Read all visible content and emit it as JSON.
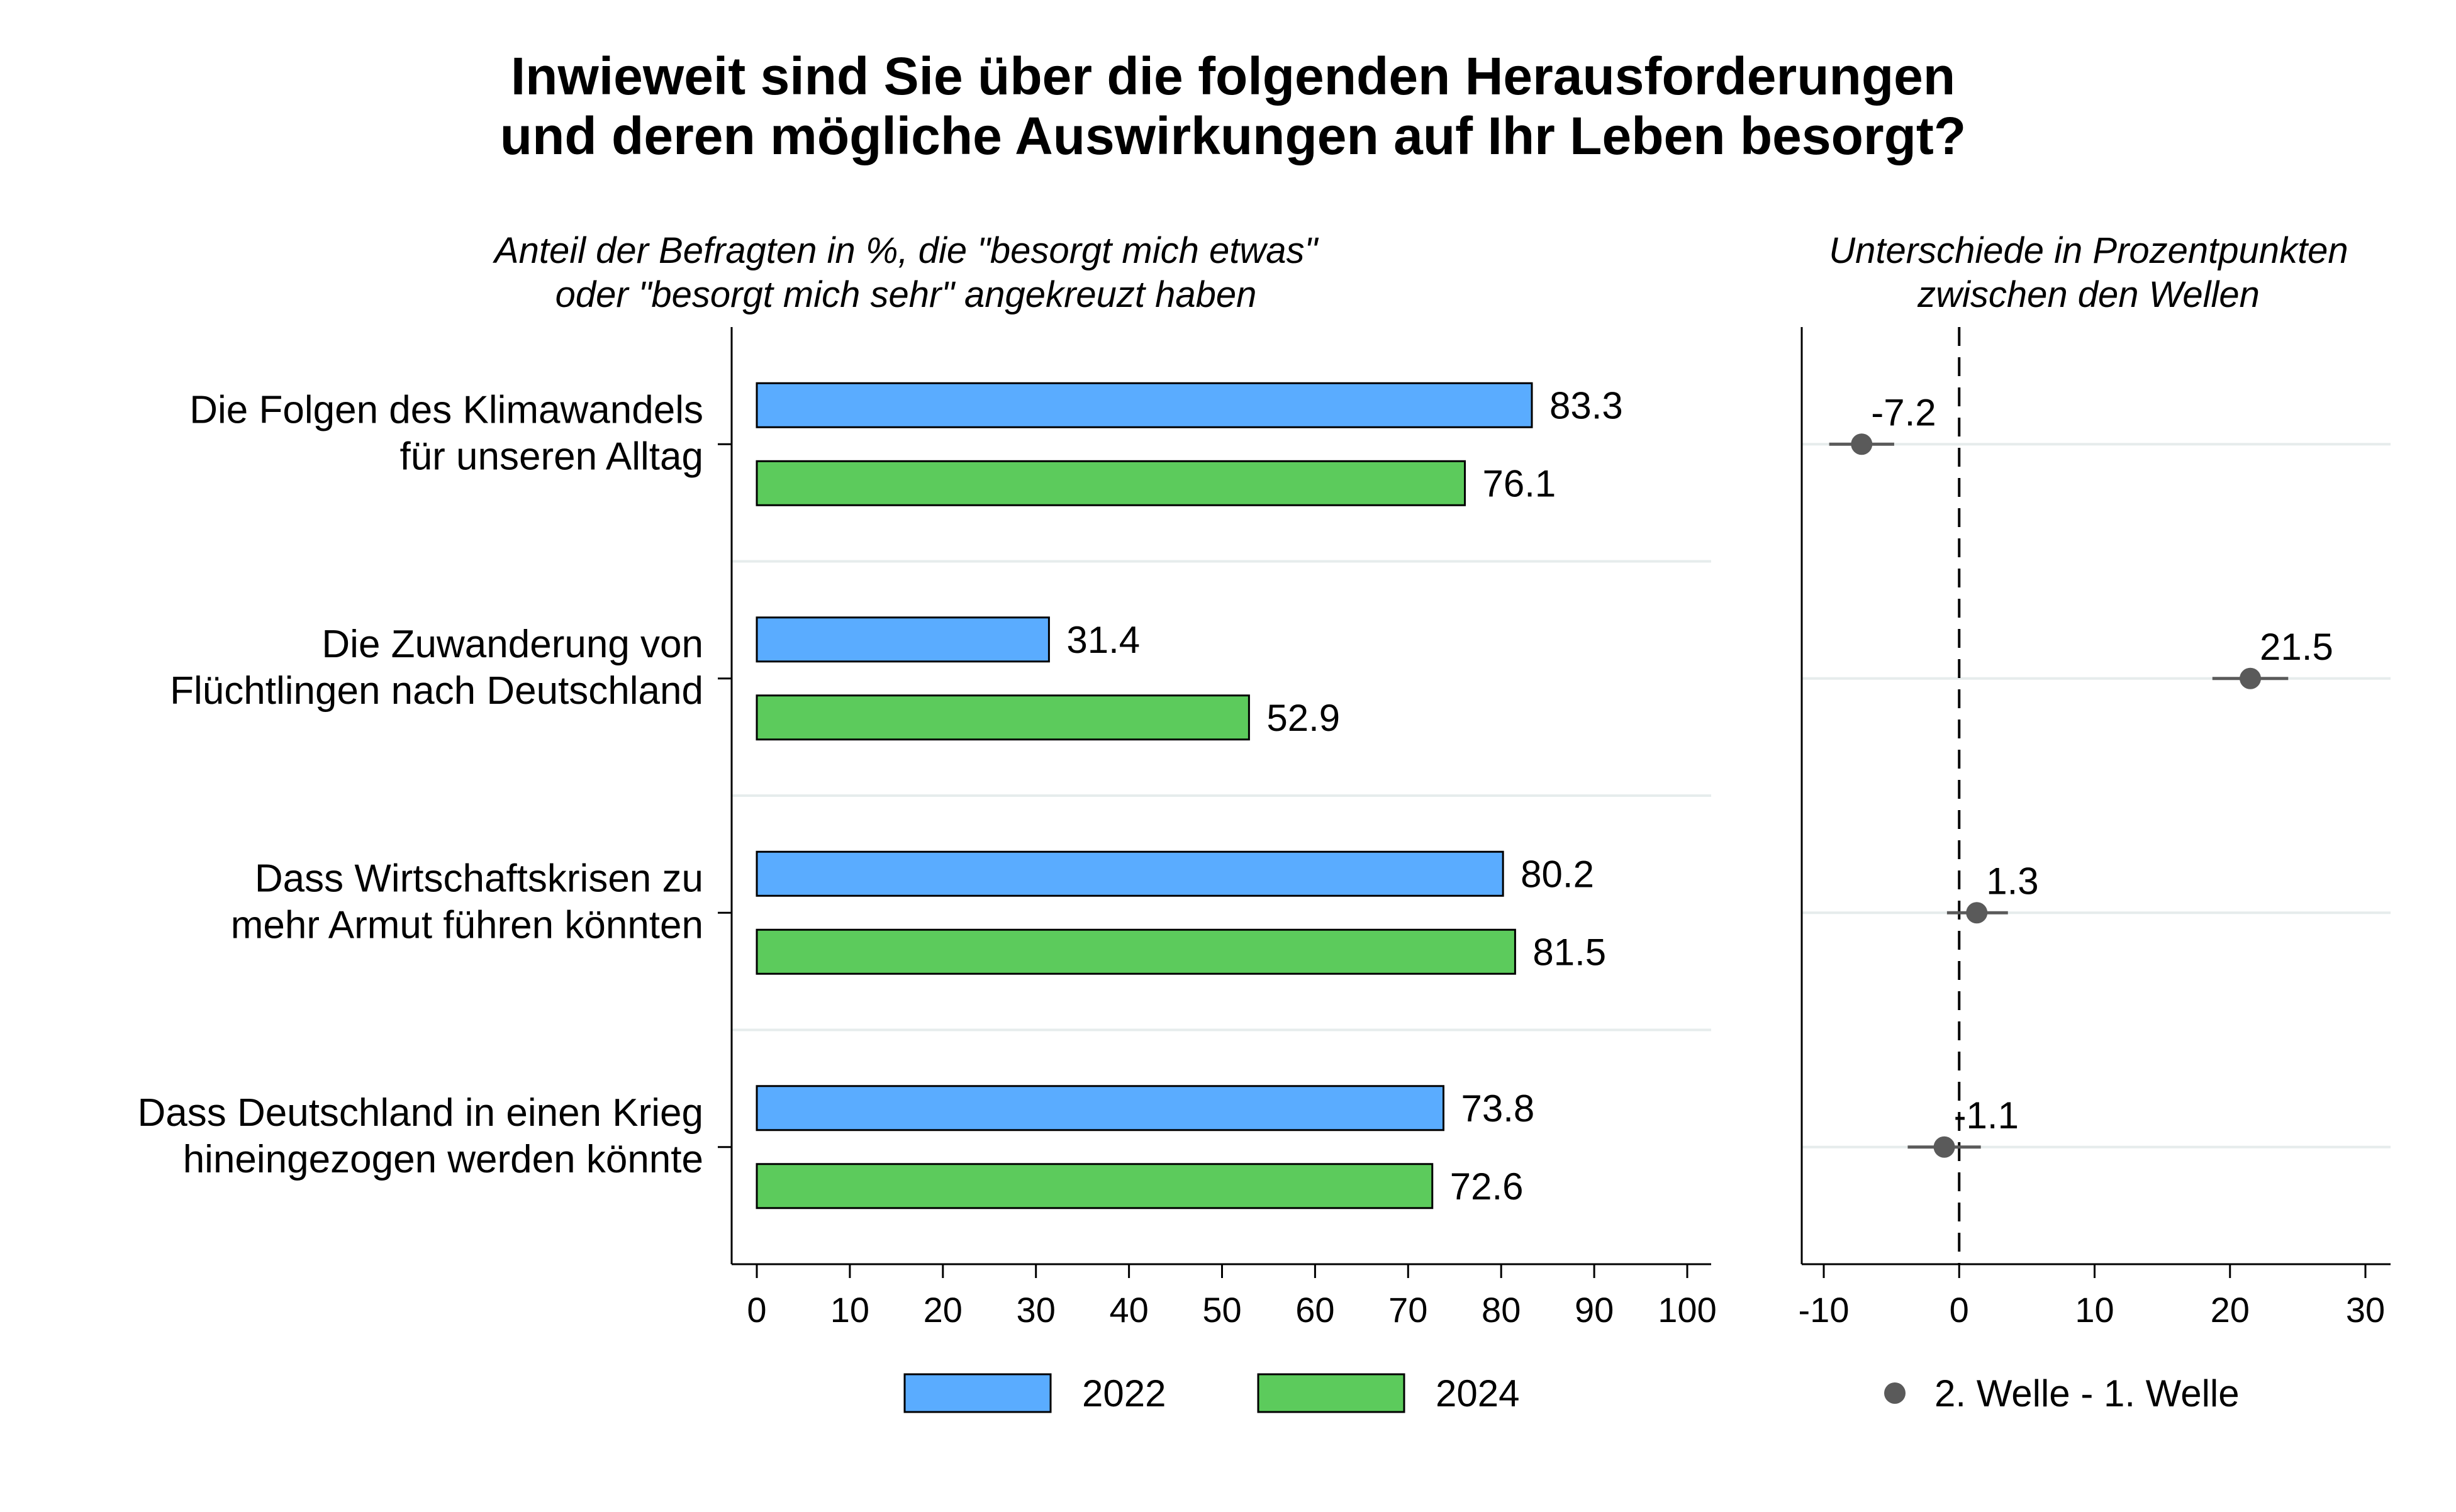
{
  "title": [
    "Inwieweit sind Sie über die folgenden Herausforderungen",
    "und deren mögliche Auswirkungen auf Ihr Leben besorgt?"
  ],
  "colors": {
    "series_2022": "#5aacff",
    "series_2024": "#5ccb5c",
    "point": "#5a5a5a",
    "grid": "#e6ecec"
  },
  "chart_data": [
    {
      "type": "bar",
      "orientation": "horizontal",
      "subtitle": [
        "Anteil der Befragten in %, die \"besorgt mich etwas\"",
        "oder \"besorgt mich sehr\" angekreuzt haben"
      ],
      "categories": [
        [
          "Die Folgen des Klimawandels",
          "für unseren Alltag"
        ],
        [
          "Die Zuwanderung von",
          "Flüchtlingen nach Deutschland"
        ],
        [
          "Dass Wirtschaftskrisen zu",
          "mehr Armut führen könnten"
        ],
        [
          "Dass Deutschland in einen Krieg",
          "hineingezogen werden könnte"
        ]
      ],
      "series": [
        {
          "name": "2022",
          "values": [
            83.3,
            31.4,
            80.2,
            73.8
          ]
        },
        {
          "name": "2024",
          "values": [
            76.1,
            52.9,
            81.5,
            72.6
          ]
        }
      ],
      "value_labels": [
        [
          "83.3",
          "31.4",
          "80.2",
          "73.8"
        ],
        [
          "76.1",
          "52.9",
          "81.5",
          "72.6"
        ]
      ],
      "xlim": [
        0,
        100
      ],
      "xticks": [
        "0",
        "10",
        "20",
        "30",
        "40",
        "50",
        "60",
        "70",
        "80",
        "90",
        "100"
      ],
      "legend": {
        "placement": "bottom",
        "entries": [
          "2022",
          "2024"
        ]
      }
    },
    {
      "type": "scatter",
      "subtitle": [
        "Unterschiede in Prozentpunkten",
        "zwischen den Wellen"
      ],
      "values": [
        -7.2,
        21.5,
        1.3,
        -1.1
      ],
      "value_labels": [
        "-7.2",
        "21.5",
        "1.3",
        "-1.1"
      ],
      "ci": [
        [
          -9.6,
          -4.8
        ],
        [
          18.7,
          24.3
        ],
        [
          -0.9,
          3.6
        ],
        [
          -3.8,
          1.6
        ]
      ],
      "reference_line": 0,
      "xlim": [
        -12,
        32
      ],
      "xticks": [
        "-10",
        "0",
        "10",
        "20",
        "30"
      ],
      "legend": {
        "placement": "bottom",
        "entries": [
          "2. Welle - 1. Welle"
        ]
      }
    }
  ]
}
